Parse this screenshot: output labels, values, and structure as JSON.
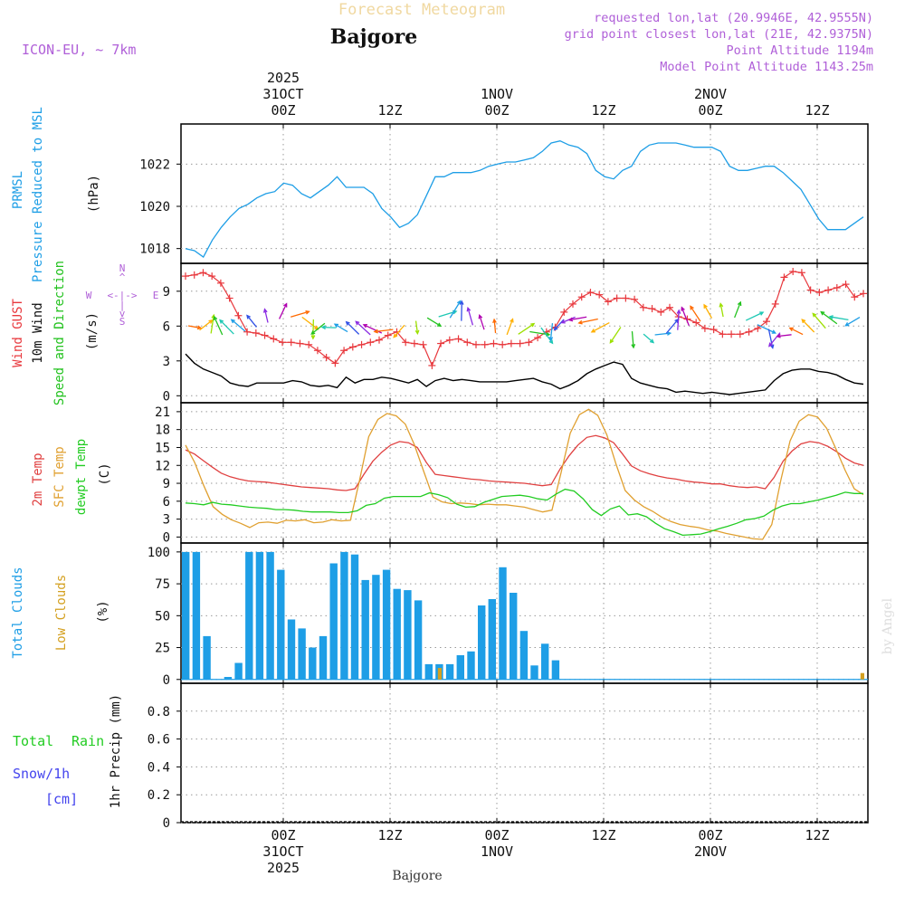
{
  "header": {
    "forecast_label": "Forecast Meteogram",
    "title": "Bajgore",
    "model": "ICON-EU, ~ 7km",
    "requested": "requested lon,lat (20.9946E, 42.9555N)",
    "grid_point": "grid point closest lon,lat (21E, 42.9375N)",
    "point_altitude": "Point Altitude 1194m",
    "model_altitude": "Model Point Altitude 1143.25m",
    "watermark": "by Angel",
    "footer_station": "Bajgore"
  },
  "colors": {
    "pressure": "#1e9ee6",
    "gust": "#e8383d",
    "wind": "#000000",
    "direction": "#22c21e",
    "temp2m": "#e04040",
    "sfc": "#e0a030",
    "dewpt": "#22cc22",
    "total_clouds": "#1e9ee6",
    "low_clouds": "#d4a020",
    "rain": "#22cc22",
    "snow": "#4444ee",
    "header_purple": "#b060d8"
  },
  "time_axis": {
    "top_labels": [
      {
        "id": "d1",
        "lines": [
          "2025",
          "31OCT",
          "00Z"
        ]
      },
      {
        "id": "h1",
        "lines": [
          "12Z"
        ]
      },
      {
        "id": "d2",
        "lines": [
          "1NOV",
          "00Z"
        ]
      },
      {
        "id": "h2",
        "lines": [
          "12Z"
        ]
      },
      {
        "id": "d3",
        "lines": [
          "2NOV",
          "00Z"
        ]
      },
      {
        "id": "h3",
        "lines": [
          "12Z"
        ]
      }
    ],
    "bottom_labels": [
      {
        "id": "d1",
        "lines": [
          "00Z",
          "31OCT",
          "2025"
        ]
      },
      {
        "id": "h1",
        "lines": [
          "12Z"
        ]
      },
      {
        "id": "d2",
        "lines": [
          "00Z",
          "1NOV"
        ]
      },
      {
        "id": "h2",
        "lines": [
          "12Z"
        ]
      },
      {
        "id": "d3",
        "lines": [
          "00Z",
          "2NOV"
        ]
      },
      {
        "id": "h3",
        "lines": [
          "12Z"
        ]
      }
    ]
  },
  "chart_data": [
    {
      "type": "line",
      "title": "PRMSL Pressure Reduced to MSL",
      "ylabel": "(hPa)",
      "legend": [
        "PRMSL",
        "Pressure Reduced to MSL"
      ],
      "ylim": [
        1017.3,
        1023.9
      ],
      "yticks": [
        1018,
        1020,
        1022
      ],
      "series": [
        {
          "name": "PRMSL",
          "values": [
            1018.0,
            1017.9,
            1017.6,
            1018.4,
            1019.0,
            1019.5,
            1019.9,
            1020.1,
            1020.4,
            1020.6,
            1020.7,
            1021.1,
            1021.0,
            1020.6,
            1020.4,
            1020.7,
            1021.0,
            1021.4,
            1020.9,
            1020.9,
            1020.9,
            1020.6,
            1019.9,
            1019.5,
            1019.0,
            1019.2,
            1019.6,
            1020.5,
            1021.4,
            1021.4,
            1021.6,
            1021.6,
            1021.6,
            1021.7,
            1021.9,
            1022.0,
            1022.1,
            1022.1,
            1022.2,
            1022.3,
            1022.6,
            1023.0,
            1023.1,
            1022.9,
            1022.8,
            1022.5,
            1021.7,
            1021.4,
            1021.3,
            1021.7,
            1021.9,
            1022.6,
            1022.9,
            1023.0,
            1023.0,
            1023.0,
            1022.9,
            1022.8,
            1022.8,
            1022.8,
            1022.6,
            1021.9,
            1021.7,
            1021.7,
            1021.8,
            1021.9,
            1021.9,
            1021.6,
            1021.2,
            1020.8,
            1020.1,
            1019.4,
            1018.9,
            1018.9,
            1018.9,
            1019.2,
            1019.5
          ]
        }
      ]
    },
    {
      "type": "line",
      "title": "Wind GUST / 10m Wind Speed and Direction",
      "ylabel": "(m/s)",
      "legend": [
        "Wind GUST",
        "10m Wind",
        "Speed and Direction"
      ],
      "compass": {
        "n": "N",
        "s": "S",
        "e": "E",
        "w": "W",
        "arrow": "<-|->",
        "up": "^",
        "down": "v",
        "bar": "|"
      },
      "ylim": [
        -0.6,
        11.4
      ],
      "yticks": [
        0,
        3,
        6,
        9
      ],
      "series": [
        {
          "name": "Wind GUST",
          "values": [
            10.3,
            10.4,
            10.6,
            10.3,
            9.7,
            8.4,
            6.9,
            5.5,
            5.4,
            5.2,
            4.9,
            4.6,
            4.6,
            4.5,
            4.4,
            3.9,
            3.3,
            2.8,
            3.9,
            4.2,
            4.4,
            4.6,
            4.8,
            5.2,
            5.5,
            4.6,
            4.5,
            4.4,
            2.6,
            4.5,
            4.8,
            4.9,
            4.6,
            4.4,
            4.4,
            4.5,
            4.4,
            4.5,
            4.5,
            4.6,
            5.0,
            5.5,
            5.9,
            7.2,
            7.9,
            8.5,
            8.9,
            8.7,
            8.1,
            8.4,
            8.4,
            8.3,
            7.6,
            7.5,
            7.2,
            7.6,
            6.8,
            6.6,
            6.3,
            5.8,
            5.7,
            5.3,
            5.3,
            5.3,
            5.5,
            5.8,
            6.4,
            7.9,
            10.2,
            10.7,
            10.6,
            9.1,
            8.9,
            9.1,
            9.3,
            9.6,
            8.5,
            8.8
          ]
        },
        {
          "name": "10m Wind",
          "values": [
            3.6,
            2.8,
            2.3,
            2.0,
            1.7,
            1.1,
            0.9,
            0.8,
            1.1,
            1.1,
            1.1,
            1.1,
            1.3,
            1.2,
            0.9,
            0.8,
            0.9,
            0.7,
            1.6,
            1.1,
            1.4,
            1.4,
            1.6,
            1.5,
            1.3,
            1.1,
            1.4,
            0.8,
            1.3,
            1.5,
            1.3,
            1.4,
            1.3,
            1.2,
            1.2,
            1.2,
            1.2,
            1.3,
            1.4,
            1.5,
            1.2,
            1.0,
            0.6,
            0.9,
            1.3,
            1.9,
            2.3,
            2.6,
            2.9,
            2.7,
            1.5,
            1.1,
            0.9,
            0.7,
            0.6,
            0.3,
            0.4,
            0.3,
            0.2,
            0.3,
            0.2,
            0.1,
            0.2,
            0.3,
            0.4,
            0.5,
            1.3,
            1.9,
            2.2,
            2.3,
            2.3,
            2.1,
            2.0,
            1.8,
            1.4,
            1.1,
            1.0
          ]
        }
      ]
    },
    {
      "type": "line",
      "title": "2m Temp / SFC Temp / dewpt Temp",
      "ylabel": "(C)",
      "legend": [
        "2m Temp",
        "SFC Temp",
        "dewpt Temp"
      ],
      "ylim": [
        -1.0,
        22.5
      ],
      "yticks": [
        0,
        3,
        6,
        9,
        12,
        15,
        18,
        21
      ],
      "series": [
        {
          "name": "2m Temp",
          "values": [
            14.6,
            13.9,
            12.8,
            11.7,
            10.7,
            10.1,
            9.7,
            9.4,
            9.3,
            9.2,
            9.0,
            8.8,
            8.6,
            8.4,
            8.3,
            8.2,
            8.1,
            7.9,
            7.8,
            8.1,
            10.5,
            12.7,
            14.2,
            15.4,
            16.0,
            15.8,
            15.0,
            12.5,
            10.5,
            10.3,
            10.1,
            9.9,
            9.7,
            9.6,
            9.4,
            9.3,
            9.2,
            9.1,
            9.0,
            8.8,
            8.6,
            8.8,
            11.4,
            13.6,
            15.4,
            16.7,
            17.0,
            16.6,
            15.8,
            13.9,
            11.9,
            11.1,
            10.6,
            10.2,
            9.9,
            9.7,
            9.4,
            9.2,
            9.1,
            8.9,
            8.9,
            8.6,
            8.4,
            8.3,
            8.4,
            8.1,
            10.0,
            12.7,
            14.4,
            15.6,
            16.0,
            15.8,
            15.2,
            14.3,
            13.2,
            12.4,
            12.0
          ]
        },
        {
          "name": "SFC Temp",
          "values": [
            15.4,
            12.5,
            8.6,
            5.1,
            3.8,
            2.9,
            2.3,
            1.6,
            2.4,
            2.5,
            2.3,
            2.8,
            2.7,
            2.9,
            2.4,
            2.5,
            2.9,
            2.7,
            2.8,
            9.5,
            16.8,
            19.7,
            20.7,
            20.3,
            18.9,
            15.4,
            11.0,
            6.7,
            5.9,
            5.6,
            5.7,
            5.6,
            5.4,
            5.5,
            5.4,
            5.4,
            5.2,
            5.0,
            4.6,
            4.2,
            4.5,
            10.8,
            17.4,
            20.5,
            21.4,
            20.4,
            17.1,
            12.2,
            7.8,
            6.2,
            5.1,
            4.3,
            3.3,
            2.6,
            2.1,
            1.8,
            1.6,
            1.2,
            1.0,
            0.6,
            0.3,
            0.0,
            -0.3,
            -0.4,
            2.1,
            9.6,
            16.1,
            19.4,
            20.5,
            20.1,
            18.2,
            14.8,
            11.2,
            8.1,
            7.1
          ]
        },
        {
          "name": "dewpt Temp",
          "values": [
            5.7,
            5.6,
            5.4,
            5.8,
            5.5,
            5.4,
            5.2,
            5.0,
            4.9,
            4.8,
            4.6,
            4.6,
            4.5,
            4.3,
            4.2,
            4.2,
            4.2,
            4.1,
            4.1,
            4.4,
            5.3,
            5.6,
            6.5,
            6.8,
            6.8,
            6.8,
            6.8,
            7.4,
            7.1,
            6.6,
            5.5,
            5.0,
            5.1,
            5.8,
            6.3,
            6.8,
            6.9,
            7.0,
            6.8,
            6.4,
            6.2,
            7.2,
            8.0,
            7.7,
            6.4,
            4.6,
            3.6,
            4.7,
            5.2,
            3.7,
            3.9,
            3.4,
            2.3,
            1.4,
            0.9,
            0.3,
            0.4,
            0.5,
            0.9,
            1.4,
            1.8,
            2.3,
            2.9,
            3.1,
            3.5,
            4.5,
            5.2,
            5.6,
            5.6,
            5.9,
            6.2,
            6.6,
            7.0,
            7.5,
            7.3,
            7.3
          ]
        }
      ]
    },
    {
      "type": "bar",
      "title": "Total Clouds / Low Clouds",
      "ylabel": "(%)",
      "legend": [
        "Total Clouds",
        "Low Clouds"
      ],
      "ylim": [
        -3,
        107
      ],
      "yticks": [
        0,
        25,
        50,
        75,
        100
      ],
      "series": [
        {
          "name": "Total Clouds",
          "values": [
            100,
            100,
            34,
            0,
            2,
            13,
            100,
            100,
            100,
            86,
            47,
            40,
            25,
            34,
            91,
            100,
            98,
            78,
            82,
            86,
            71,
            70,
            62,
            12,
            12,
            12,
            19,
            22,
            58,
            63,
            88,
            68,
            38,
            11,
            28,
            15,
            0,
            0,
            0,
            0,
            0,
            0,
            0,
            0,
            0,
            0,
            0,
            0,
            0,
            0,
            0,
            0,
            0,
            0,
            0,
            0,
            0,
            0,
            0,
            0,
            0,
            0,
            0,
            0,
            0
          ]
        },
        {
          "name": "Low Clouds",
          "values": [
            0,
            0,
            0,
            0,
            0,
            0,
            0,
            0,
            0,
            0,
            0,
            0,
            0,
            0,
            0,
            0,
            0,
            0,
            0,
            0,
            0,
            0,
            0,
            0,
            9,
            0,
            0,
            0,
            0,
            0,
            0,
            0,
            0,
            0,
            0,
            0,
            0,
            0,
            0,
            0,
            0,
            0,
            0,
            0,
            0,
            0,
            0,
            0,
            0,
            0,
            0,
            0,
            0,
            0,
            0,
            0,
            0,
            0,
            0,
            0,
            0,
            0,
            0,
            0,
            5
          ]
        }
      ]
    },
    {
      "type": "bar",
      "title": "1hr Precip",
      "ylabel": "1hr Precip (mm)",
      "legend": [
        "Total",
        "Rain",
        "Snow/1h",
        "[cm]"
      ],
      "ylim": [
        0,
        1.0
      ],
      "yticks": [
        0,
        0.2,
        0.4,
        0.6,
        0.8
      ],
      "ytick_labels": [
        "0",
        "0.2",
        "0.4",
        "0.6",
        "0.8"
      ],
      "series": [
        {
          "name": "Total Rain",
          "values": []
        },
        {
          "name": "Snow/1h",
          "values": []
        }
      ]
    }
  ]
}
